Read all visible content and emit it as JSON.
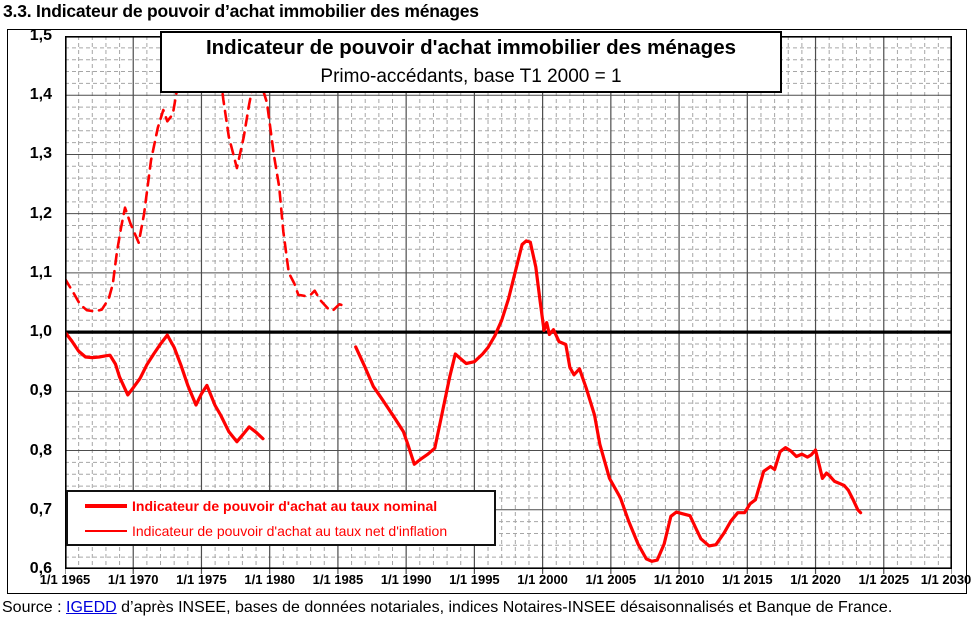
{
  "page": {
    "title": "3.3. Indicateur de pouvoir d’achat immobilier des ménages"
  },
  "chart": {
    "title": "Indicateur de pouvoir d'achat immobilier des ménages",
    "subtitle": "Primo-accédants, base T1 2000 = 1",
    "legend_nominal": "Indicateur de pouvoir d'achat au taux nominal",
    "legend_inflation": "Indicateur de pouvoir d'achat au taux net d'inflation"
  },
  "source": {
    "prefix": "Source : ",
    "link_text": "IGEDD",
    "suffix": " d’après INSEE, bases de données notariales, indices Notaires-INSEE désaisonnalisés et Banque de France."
  },
  "chart_data": {
    "type": "line",
    "title": "Indicateur de pouvoir d'achat immobilier des ménages",
    "subtitle": "Primo-accédants, base T1 2000 = 1",
    "grid": "major+minor",
    "legend_position": "bottom-left-inside",
    "baseline": 1.0,
    "x_axis": {
      "min": 1965,
      "max": 2030,
      "major_step": 5,
      "minor_step": 1,
      "tick_labels": [
        "1/1 1965",
        "1/1 1970",
        "1/1 1975",
        "1/1 1980",
        "1/1 1985",
        "1/1 1990",
        "1/1 1995",
        "1/1 2000",
        "1/1 2005",
        "1/1 2010",
        "1/1 2015",
        "1/1 2020",
        "1/1 2025",
        "1/1 2030"
      ]
    },
    "y_axis": {
      "min": 0.6,
      "max": 1.5,
      "major_step": 0.1,
      "minor_step": 0.02,
      "tick_labels": [
        "1,5",
        "1,4",
        "1,3",
        "1,2",
        "1,1",
        "1,0",
        "0,9",
        "0,8",
        "0,7",
        "0,6"
      ]
    },
    "colors": {
      "series": "#ff0000",
      "baseline": "#000000",
      "frame": "#000000",
      "grid_major": "#4d4d4d",
      "grid_minor": "#a6a6a6",
      "link": "#0000dd"
    },
    "series": [
      {
        "name": "Indicateur de pouvoir d'achat au taux nominal",
        "style": "solid",
        "width": 3.2,
        "segments": [
          [
            [
              1965.0,
              1.0
            ],
            [
              1965.5,
              0.985
            ],
            [
              1966.0,
              0.968
            ],
            [
              1966.5,
              0.958
            ],
            [
              1967.0,
              0.957
            ],
            [
              1967.5,
              0.958
            ],
            [
              1968.0,
              0.96
            ],
            [
              1968.3,
              0.961
            ],
            [
              1968.7,
              0.946
            ],
            [
              1969.0,
              0.924
            ],
            [
              1969.6,
              0.894
            ],
            [
              1970.0,
              0.906
            ],
            [
              1970.5,
              0.922
            ],
            [
              1971.0,
              0.945
            ],
            [
              1971.5,
              0.963
            ],
            [
              1972.0,
              0.98
            ],
            [
              1972.5,
              0.995
            ],
            [
              1973.0,
              0.974
            ],
            [
              1973.5,
              0.944
            ],
            [
              1974.0,
              0.91
            ],
            [
              1974.6,
              0.877
            ],
            [
              1975.0,
              0.896
            ],
            [
              1975.4,
              0.91
            ],
            [
              1976.0,
              0.876
            ],
            [
              1976.4,
              0.86
            ],
            [
              1977.0,
              0.832
            ],
            [
              1977.6,
              0.815
            ],
            [
              1978.0,
              0.826
            ],
            [
              1978.5,
              0.84
            ],
            [
              1979.0,
              0.831
            ],
            [
              1979.5,
              0.82
            ]
          ],
          [
            [
              1986.3,
              0.975
            ],
            [
              1987.0,
              0.94
            ],
            [
              1987.6,
              0.908
            ],
            [
              1988.2,
              0.888
            ],
            [
              1989.1,
              0.857
            ],
            [
              1989.8,
              0.832
            ],
            [
              1990.1,
              0.812
            ],
            [
              1990.6,
              0.777
            ],
            [
              1991.1,
              0.786
            ],
            [
              1991.6,
              0.794
            ],
            [
              1992.1,
              0.804
            ],
            [
              1992.7,
              0.87
            ],
            [
              1993.2,
              0.925
            ],
            [
              1993.6,
              0.963
            ],
            [
              1994.0,
              0.955
            ],
            [
              1994.4,
              0.947
            ],
            [
              1995.0,
              0.95
            ],
            [
              1995.6,
              0.963
            ],
            [
              1996.0,
              0.974
            ],
            [
              1996.5,
              0.994
            ],
            [
              1997.0,
              1.02
            ],
            [
              1997.5,
              1.056
            ],
            [
              1998.0,
              1.102
            ],
            [
              1998.5,
              1.148
            ],
            [
              1998.8,
              1.154
            ],
            [
              1999.1,
              1.152
            ],
            [
              1999.5,
              1.11
            ],
            [
              1999.8,
              1.055
            ],
            [
              2000.1,
              1.003
            ],
            [
              2000.3,
              1.016
            ],
            [
              2000.5,
              0.996
            ],
            [
              2000.8,
              1.004
            ],
            [
              2001.2,
              0.984
            ],
            [
              2001.7,
              0.979
            ],
            [
              2002.0,
              0.94
            ],
            [
              2002.3,
              0.928
            ],
            [
              2002.7,
              0.938
            ],
            [
              2003.2,
              0.905
            ],
            [
              2003.8,
              0.86
            ],
            [
              2004.2,
              0.81
            ],
            [
              2004.9,
              0.753
            ],
            [
              2005.7,
              0.72
            ],
            [
              2006.3,
              0.681
            ],
            [
              2007.0,
              0.642
            ],
            [
              2007.6,
              0.617
            ],
            [
              2008.0,
              0.613
            ],
            [
              2008.4,
              0.615
            ],
            [
              2008.9,
              0.642
            ],
            [
              2009.4,
              0.689
            ],
            [
              2009.8,
              0.696
            ],
            [
              2010.3,
              0.693
            ],
            [
              2010.8,
              0.69
            ],
            [
              2011.2,
              0.67
            ],
            [
              2011.6,
              0.651
            ],
            [
              2012.2,
              0.639
            ],
            [
              2012.7,
              0.641
            ],
            [
              2013.3,
              0.661
            ],
            [
              2013.8,
              0.681
            ],
            [
              2014.3,
              0.695
            ],
            [
              2014.8,
              0.695
            ],
            [
              2015.2,
              0.71
            ],
            [
              2015.6,
              0.717
            ],
            [
              2016.2,
              0.765
            ],
            [
              2016.7,
              0.773
            ],
            [
              2017.0,
              0.768
            ],
            [
              2017.4,
              0.798
            ],
            [
              2017.8,
              0.805
            ],
            [
              2018.2,
              0.799
            ],
            [
              2018.6,
              0.79
            ],
            [
              2019.0,
              0.794
            ],
            [
              2019.4,
              0.789
            ],
            [
              2019.7,
              0.793
            ],
            [
              2020.0,
              0.801
            ],
            [
              2020.3,
              0.773
            ],
            [
              2020.5,
              0.753
            ],
            [
              2020.8,
              0.762
            ],
            [
              2021.0,
              0.758
            ],
            [
              2021.4,
              0.748
            ],
            [
              2021.8,
              0.744
            ],
            [
              2022.1,
              0.741
            ],
            [
              2022.4,
              0.733
            ],
            [
              2022.8,
              0.715
            ],
            [
              2023.1,
              0.7
            ],
            [
              2023.3,
              0.695
            ]
          ]
        ]
      },
      {
        "name": "Indicateur de pouvoir d'achat au taux net d'inflation",
        "style": "dashed",
        "width": 2.6,
        "segments": [
          [
            [
              1965.0,
              1.09
            ],
            [
              1965.6,
              1.067
            ],
            [
              1966.1,
              1.047
            ],
            [
              1966.6,
              1.037
            ],
            [
              1967.2,
              1.035
            ],
            [
              1967.7,
              1.038
            ],
            [
              1968.2,
              1.056
            ],
            [
              1968.5,
              1.081
            ],
            [
              1968.8,
              1.135
            ],
            [
              1969.1,
              1.175
            ],
            [
              1969.4,
              1.21
            ],
            [
              1969.8,
              1.183
            ],
            [
              1970.4,
              1.151
            ],
            [
              1970.8,
              1.2
            ],
            [
              1971.3,
              1.29
            ],
            [
              1971.8,
              1.345
            ],
            [
              1972.2,
              1.375
            ],
            [
              1972.5,
              1.356
            ],
            [
              1972.9,
              1.368
            ],
            [
              1973.4,
              1.435
            ],
            [
              1973.8,
              1.52
            ],
            [
              1974.5,
              1.56
            ],
            [
              1975.5,
              1.56
            ],
            [
              1976.2,
              1.47
            ],
            [
              1976.6,
              1.393
            ],
            [
              1977.0,
              1.33
            ],
            [
              1977.6,
              1.277
            ],
            [
              1978.1,
              1.33
            ],
            [
              1978.5,
              1.385
            ],
            [
              1978.9,
              1.432
            ],
            [
              1979.3,
              1.425
            ],
            [
              1979.8,
              1.387
            ],
            [
              1980.3,
              1.3
            ],
            [
              1980.7,
              1.245
            ],
            [
              1981.0,
              1.17
            ],
            [
              1981.4,
              1.1
            ],
            [
              1981.8,
              1.082
            ],
            [
              1982.1,
              1.063
            ],
            [
              1982.6,
              1.061
            ],
            [
              1983.0,
              1.063
            ],
            [
              1983.3,
              1.07
            ],
            [
              1983.7,
              1.054
            ],
            [
              1984.3,
              1.039
            ],
            [
              1984.6,
              1.036
            ],
            [
              1985.1,
              1.047
            ],
            [
              1985.4,
              1.045
            ]
          ]
        ]
      }
    ]
  }
}
